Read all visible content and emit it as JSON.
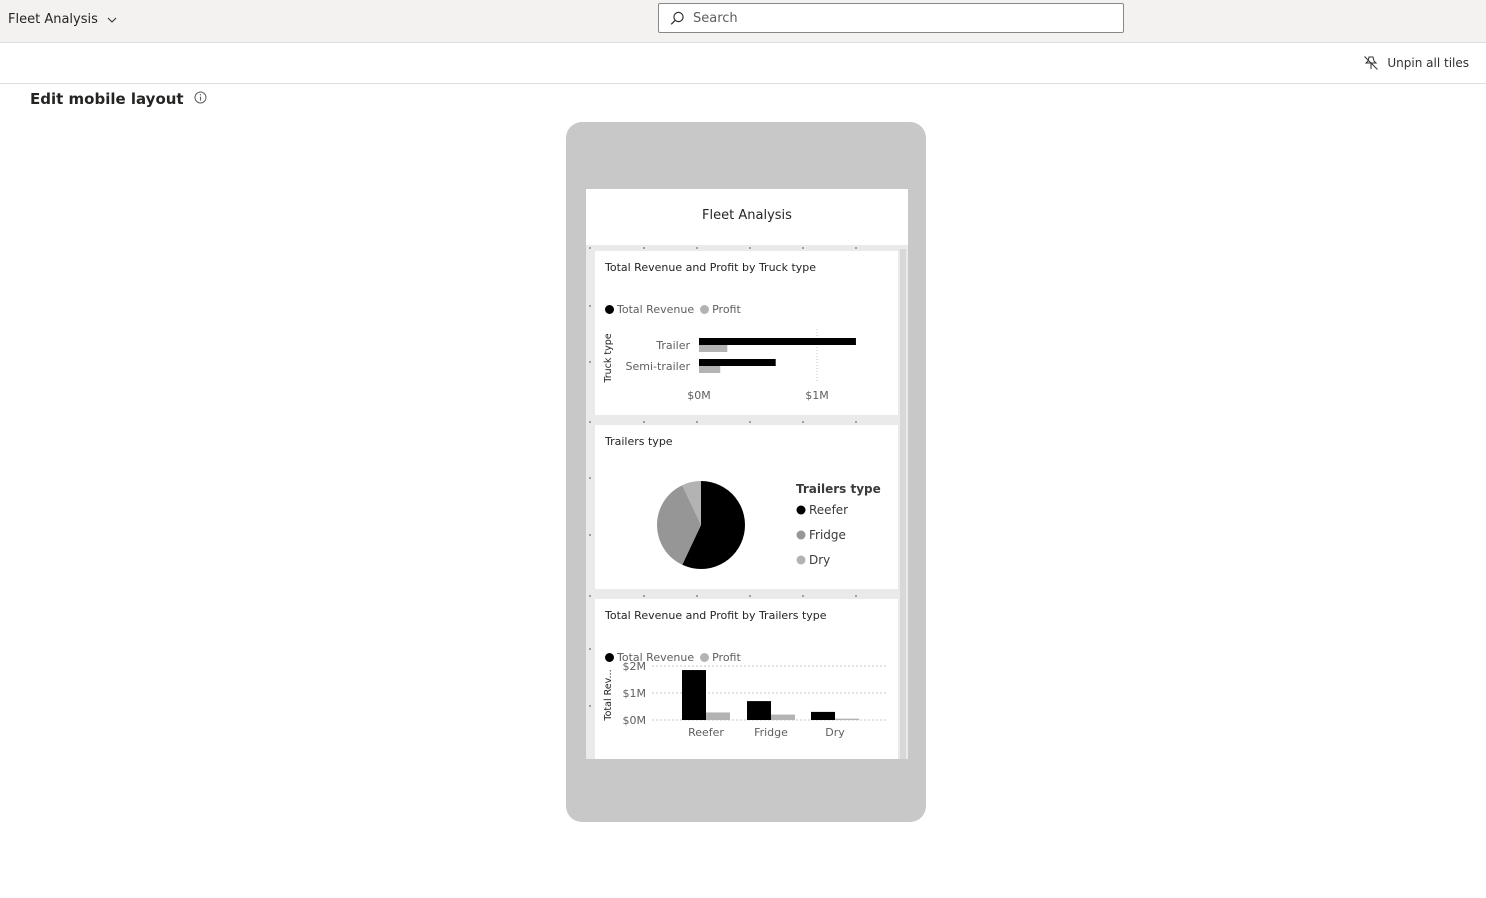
{
  "header": {
    "report_name": "Fleet Analysis",
    "search_placeholder": "Search"
  },
  "commandbar": {
    "unpin_label": "Unpin all tiles"
  },
  "page": {
    "heading": "Edit mobile layout"
  },
  "dashboard": {
    "title": "Fleet Analysis",
    "tiles": [
      {
        "title": "Total Revenue and Profit by Truck type",
        "legend": [
          "Total Revenue",
          "Profit"
        ]
      },
      {
        "title": "Trailers type"
      },
      {
        "title": "Total Revenue and Profit by Trailers type",
        "legend": [
          "Total Revenue",
          "Profit"
        ]
      }
    ]
  },
  "colors": {
    "revenue": "#000000",
    "profit": "#b3b3b3",
    "reefer": "#000000",
    "fridge": "#969696",
    "dry": "#b3b3b3"
  },
  "icons": {
    "report_menu": "chevron-down-icon",
    "search": "search-icon",
    "unpin": "unpin-icon",
    "info": "info-icon"
  },
  "chart_data": [
    {
      "type": "bar",
      "orientation": "horizontal",
      "title": "Total Revenue and Profit by Truck type",
      "ylabel": "Truck type",
      "categories": [
        "Trailer",
        "Semi-trailer"
      ],
      "series": [
        {
          "name": "Total Revenue",
          "values": [
            1.33,
            0.65
          ]
        },
        {
          "name": "Profit",
          "values": [
            0.24,
            0.18
          ]
        }
      ],
      "xticks": [
        "$0M",
        "$1M"
      ],
      "xlim": [
        0,
        1.5
      ],
      "legend": "top-left",
      "grid": true
    },
    {
      "type": "pie",
      "title": "Trailers type",
      "legend_title": "Trailers type",
      "labels": [
        "Reefer",
        "Fridge",
        "Dry"
      ],
      "values": [
        57,
        36,
        7
      ],
      "legend": "right"
    },
    {
      "type": "bar",
      "title": "Total Revenue and Profit by Trailers type",
      "ylabel": "Total Rev...",
      "categories": [
        "Reefer",
        "Fridge",
        "Dry"
      ],
      "series": [
        {
          "name": "Total Revenue",
          "values": [
            1.85,
            0.7,
            0.3
          ]
        },
        {
          "name": "Profit",
          "values": [
            0.28,
            0.2,
            0.05
          ]
        }
      ],
      "yticks": [
        "$0M",
        "$1M",
        "$2M"
      ],
      "ylim": [
        0,
        2
      ],
      "legend": "top-left",
      "grid": true
    }
  ]
}
